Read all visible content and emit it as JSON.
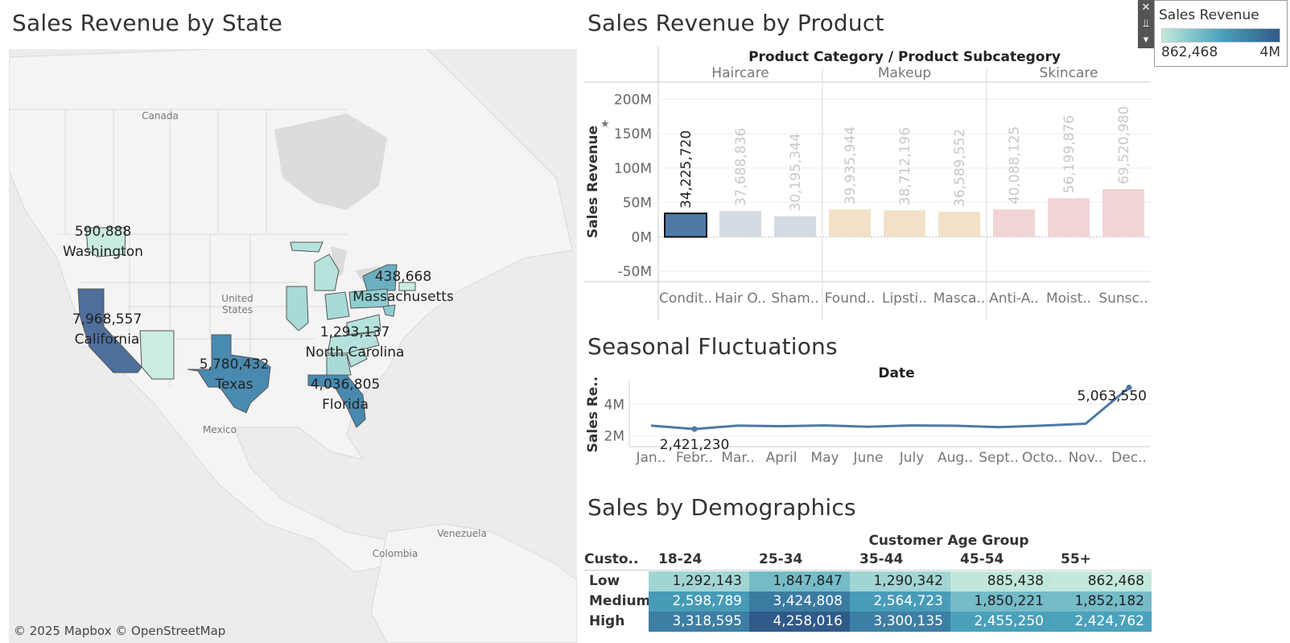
{
  "titles": {
    "state": "Sales Revenue by State",
    "product": "Sales Revenue by Product",
    "seasonal": "Seasonal Fluctuations",
    "demographics": "Sales by Demographics"
  },
  "colors": {
    "page_bg": "#ffffff",
    "map_bg": "#ececec",
    "highlight_bar": "#4e79a7",
    "haircare_fade": "#d3dbe3",
    "makeup_fade": "#f2e1c8",
    "skincare_fade": "#f0d4d6",
    "line": "#4e79a7",
    "scale_low": "#c3e8dc",
    "scale_high": "#2f5a8a"
  },
  "map": {
    "attribution": "© 2025 Mapbox © OpenStreetMap",
    "region_labels": [
      "Canada",
      "United States",
      "Mexico",
      "Venezuela",
      "Colombia"
    ],
    "states": [
      {
        "name": "Washington",
        "value": "590,888",
        "revenue": 590888
      },
      {
        "name": "California",
        "value": "7,968,557",
        "revenue": 7968557
      },
      {
        "name": "Texas",
        "value": "5,780,432",
        "revenue": 5780432
      },
      {
        "name": "Florida",
        "value": "4,036,805",
        "revenue": 4036805
      },
      {
        "name": "North Carolina",
        "value": "1,293,137",
        "revenue": 1293137
      },
      {
        "name": "Massachusetts",
        "value": "438,668",
        "revenue": 438668
      }
    ]
  },
  "legend": {
    "title": "Sales Revenue",
    "min": "862,468",
    "max": "4M",
    "tools": [
      "✕",
      "⫫",
      "▾"
    ]
  },
  "chart_data": [
    {
      "type": "bar",
      "title": "Sales Revenue by Product",
      "header": "Product Category / Product Subcategory",
      "ylabel": "Sales Revenue",
      "ylim": [
        -65000000,
        225000000
      ],
      "yticks": [
        "200M",
        "150M",
        "100M",
        "50M",
        "0M",
        "-50M"
      ],
      "ytick_values": [
        200000000,
        150000000,
        100000000,
        50000000,
        0,
        -50000000
      ],
      "groups": [
        {
          "name": "Haircare",
          "color": "#d3dbe3",
          "bars": [
            {
              "label": "Condit..",
              "value": 34225720,
              "value_label": "34,225,720",
              "highlight": true
            },
            {
              "label": "Hair O..",
              "value": 37688836,
              "value_label": "37,688,836"
            },
            {
              "label": "Sham..",
              "value": 30195344,
              "value_label": "30,195,344"
            }
          ]
        },
        {
          "name": "Makeup",
          "color": "#f2e1c8",
          "bars": [
            {
              "label": "Found..",
              "value": 39935944,
              "value_label": "39,935,944"
            },
            {
              "label": "Lipsti..",
              "value": 38712196,
              "value_label": "38,712,196"
            },
            {
              "label": "Masca..",
              "value": 36589552,
              "value_label": "36,589,552"
            }
          ]
        },
        {
          "name": "Skincare",
          "color": "#f0d4d6",
          "bars": [
            {
              "label": "Anti-A..",
              "value": 40088125,
              "value_label": "40,088,125"
            },
            {
              "label": "Moist..",
              "value": 56199876,
              "value_label": "56,199,876"
            },
            {
              "label": "Sunsc..",
              "value": 69520980,
              "value_label": "69,520,980"
            }
          ]
        }
      ]
    },
    {
      "type": "line",
      "title": "Seasonal Fluctuations",
      "xlabel": "Date",
      "ylabel": "Sales Re..",
      "ylim": [
        1300000,
        5500000
      ],
      "yticks": [
        "4M",
        "2M"
      ],
      "ytick_values": [
        4000000,
        2000000
      ],
      "categories": [
        "Jan..",
        "Febr..",
        "Mar..",
        "April",
        "May",
        "June",
        "July",
        "Aug..",
        "Sept..",
        "Octo..",
        "Nov..",
        "Dec.."
      ],
      "values": [
        2640000,
        2421230,
        2640000,
        2600000,
        2650000,
        2570000,
        2650000,
        2630000,
        2540000,
        2640000,
        2760000,
        5063550
      ],
      "annotations": [
        {
          "index": 1,
          "label": "2,421,230",
          "position": "below"
        },
        {
          "index": 11,
          "label": "5,063,550",
          "position": "left"
        }
      ]
    },
    {
      "type": "table",
      "title": "Sales by Demographics",
      "column_header": "Customer Age Group",
      "row_header": "Custo..",
      "columns": [
        "18-24",
        "25-34",
        "35-44",
        "45-54",
        "55+"
      ],
      "rows": [
        {
          "name": "Low",
          "values": [
            1292143,
            1847847,
            1290342,
            885438,
            862468
          ],
          "labels": [
            "1,292,143",
            "1,847,847",
            "1,290,342",
            "885,438",
            "862,468"
          ]
        },
        {
          "name": "Medium",
          "values": [
            2598789,
            3424808,
            2564723,
            1850221,
            1852182
          ],
          "labels": [
            "2,598,789",
            "3,424,808",
            "2,564,723",
            "1,850,221",
            "1,852,182"
          ]
        },
        {
          "name": "High",
          "values": [
            3318595,
            4258016,
            3300135,
            2455250,
            2424762
          ],
          "labels": [
            "3,318,595",
            "4,258,016",
            "3,300,135",
            "2,455,250",
            "2,424,762"
          ]
        }
      ],
      "color_min": 862468,
      "color_max": 4258016
    }
  ]
}
